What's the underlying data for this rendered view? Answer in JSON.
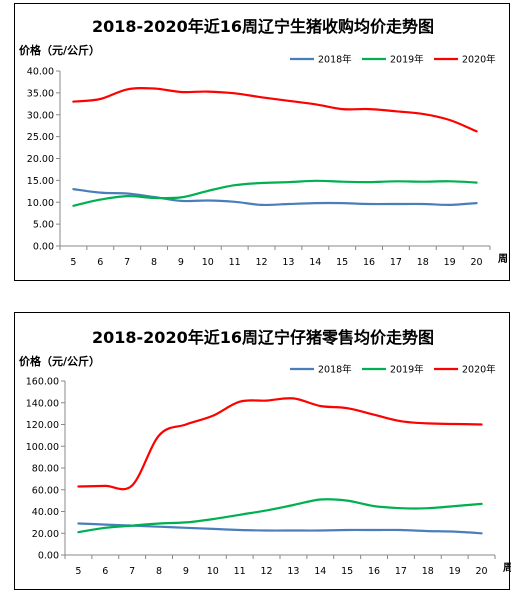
{
  "chart_data": [
    {
      "type": "line",
      "title": "2018-2020年近16周辽宁生猪收购均价走势图",
      "ylabel": "价格（元/公斤）",
      "x_unit": "周",
      "ylim": [
        0,
        40
      ],
      "y_ticks": [
        "0.00",
        "5.00",
        "10.00",
        "15.00",
        "20.00",
        "25.00",
        "30.00",
        "35.00",
        "40.00"
      ],
      "x": [
        5,
        6,
        7,
        8,
        9,
        10,
        11,
        12,
        13,
        14,
        15,
        16,
        17,
        18,
        19,
        20
      ],
      "legend_position": "top-right",
      "series": [
        {
          "name": "2018年",
          "color": "#4a7ebb",
          "values": [
            13.0,
            12.2,
            12.0,
            11.2,
            10.3,
            10.4,
            10.1,
            9.4,
            9.6,
            9.8,
            9.8,
            9.6,
            9.6,
            9.6,
            9.4,
            9.8
          ]
        },
        {
          "name": "2019年",
          "color": "#00b050",
          "values": [
            9.2,
            10.6,
            11.4,
            11.0,
            11.1,
            12.6,
            13.9,
            14.4,
            14.6,
            14.9,
            14.7,
            14.6,
            14.8,
            14.7,
            14.8,
            14.5
          ]
        },
        {
          "name": "2020年",
          "color": "#ff0000",
          "values": [
            33.0,
            33.6,
            35.8,
            36.0,
            35.2,
            35.3,
            34.9,
            34.0,
            33.2,
            32.4,
            31.3,
            31.3,
            30.8,
            30.2,
            28.8,
            26.2
          ]
        }
      ]
    },
    {
      "type": "line",
      "title": "2018-2020年近16周辽宁仔猪零售均价走势图",
      "ylabel": "价格（元/公斤）",
      "x_unit": "周",
      "ylim": [
        0,
        160
      ],
      "y_ticks": [
        "0.00",
        "20.00",
        "40.00",
        "60.00",
        "80.00",
        "100.00",
        "120.00",
        "140.00",
        "160.00"
      ],
      "x": [
        5,
        6,
        7,
        8,
        9,
        10,
        11,
        12,
        13,
        14,
        15,
        16,
        17,
        18,
        19,
        20
      ],
      "legend_position": "top-right",
      "series": [
        {
          "name": "2018年",
          "color": "#4a7ebb",
          "values": [
            29,
            28,
            27,
            26,
            25,
            24,
            23,
            22.5,
            22.5,
            22.5,
            23,
            23,
            23,
            22,
            21.5,
            20
          ]
        },
        {
          "name": "2019年",
          "color": "#00b050",
          "values": [
            21,
            25,
            27,
            29,
            30,
            33,
            37,
            41,
            46,
            51,
            50,
            45,
            43,
            43,
            45,
            47
          ]
        },
        {
          "name": "2020年",
          "color": "#ff0000",
          "values": [
            63,
            63.5,
            64,
            110,
            120,
            128,
            141,
            142,
            144,
            137,
            135,
            129,
            123,
            121,
            120.5,
            120
          ]
        }
      ]
    }
  ]
}
